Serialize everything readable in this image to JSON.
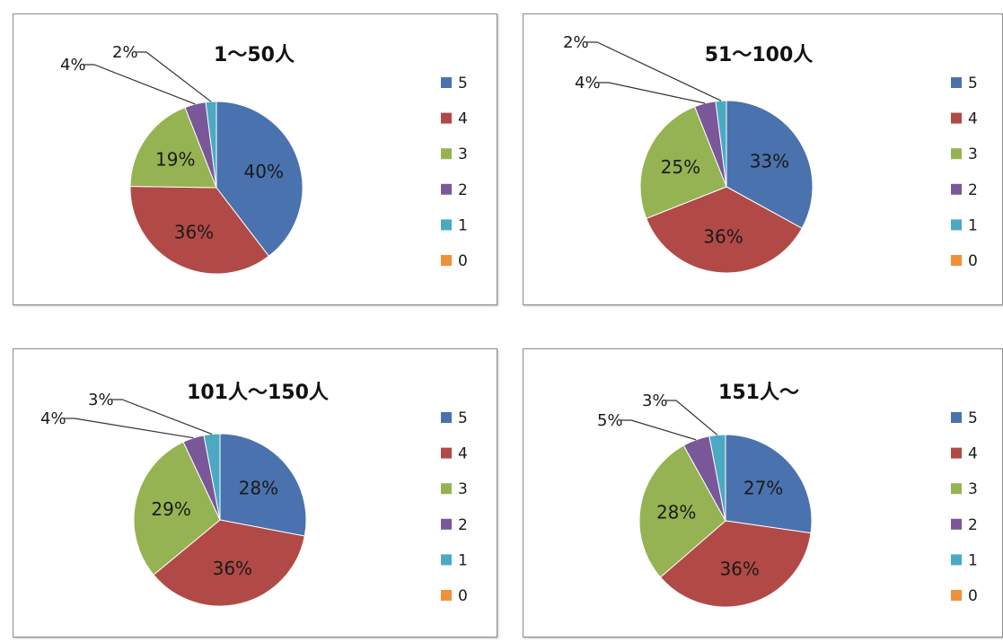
{
  "legend": [
    "5",
    "4",
    "3",
    "2",
    "1",
    "0"
  ],
  "colors": {
    "5": "#4a72ae",
    "4": "#b14a46",
    "3": "#95b353",
    "2": "#7a5799",
    "1": "#4ba9c3",
    "0": "#ef9139"
  },
  "chart_data": [
    {
      "type": "pie",
      "title": "1〜50人",
      "labels": [
        "5",
        "4",
        "3",
        "2",
        "1",
        "0"
      ],
      "values": [
        40,
        36,
        19,
        4,
        2,
        0
      ],
      "value_labels": [
        "40%",
        "36%",
        "19%",
        "4%",
        "2%",
        ""
      ]
    },
    {
      "type": "pie",
      "title": "51〜100人",
      "labels": [
        "5",
        "4",
        "3",
        "2",
        "1",
        "0"
      ],
      "values": [
        33,
        36,
        25,
        4,
        2,
        0
      ],
      "value_labels": [
        "33%",
        "36%",
        "25%",
        "4%",
        "2%",
        ""
      ]
    },
    {
      "type": "pie",
      "title": "101人〜150人",
      "labels": [
        "5",
        "4",
        "3",
        "2",
        "1",
        "0"
      ],
      "values": [
        28,
        36,
        29,
        4,
        3,
        0
      ],
      "value_labels": [
        "28%",
        "36%",
        "29%",
        "4%",
        "3%",
        ""
      ]
    },
    {
      "type": "pie",
      "title": "151人〜",
      "labels": [
        "5",
        "4",
        "3",
        "2",
        "1",
        "0"
      ],
      "values": [
        27,
        36,
        28,
        5,
        3,
        0
      ],
      "value_labels": [
        "27%",
        "36%",
        "28%",
        "5%",
        "3%",
        ""
      ]
    }
  ]
}
